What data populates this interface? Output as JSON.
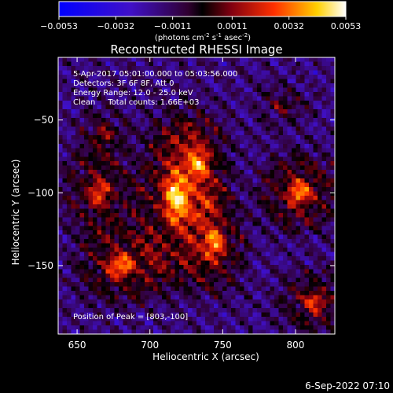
{
  "chart_data": {
    "type": "heatmap",
    "title": "Reconstructed RHESSI Image",
    "colorbar": {
      "ticks": [
        "-0.0053",
        "-0.0032",
        "-0.0011",
        "0.0011",
        "0.0032",
        "0.0053"
      ],
      "range": [
        -0.0053,
        0.0053
      ],
      "units_prefix": "(photons cm",
      "units_sup1": "-2",
      "units_mid": " s",
      "units_sup2": "-1",
      "units_end": " asec",
      "units_sup3": "-2",
      "units_close": ")",
      "colormap": "blue-purple-red-yellow-white"
    },
    "xlabel": "Heliocentric X (arcsec)",
    "ylabel": "Heliocentric Y (arcsec)",
    "xlim": [
      637,
      827
    ],
    "ylim": [
      -197,
      -7
    ],
    "xticks": [
      650,
      700,
      750,
      800
    ],
    "yticks": [
      -50,
      -100,
      -150
    ],
    "xtick_labels": [
      "650",
      "700",
      "750",
      "800"
    ],
    "ytick_labels": [
      "−50",
      "−100",
      "−150"
    ],
    "info_lines": [
      "5-Apr-2017 05:01:00.000 to 05:03:56.000",
      "Detectors: 3F 6F 8F, Att 0",
      "Energy Range: 12.0 - 25.0 keV",
      "Clean     Total counts: 1.66E+03"
    ],
    "peak_label": "Position of Peak = [803,-100]",
    "peak": [
      803,
      -100
    ],
    "sources": [
      {
        "x": 718,
        "y": -105,
        "sx": 14,
        "sy": 30,
        "amp": 1.0
      },
      {
        "x": 733,
        "y": -80,
        "sx": 12,
        "sy": 18,
        "amp": 0.7
      },
      {
        "x": 745,
        "y": -135,
        "sx": 11,
        "sy": 18,
        "amp": 0.85
      },
      {
        "x": 803,
        "y": -100,
        "sx": 14,
        "sy": 14,
        "amp": 0.95
      },
      {
        "x": 665,
        "y": -100,
        "sx": 13,
        "sy": 16,
        "amp": 0.75
      },
      {
        "x": 680,
        "y": -150,
        "sx": 16,
        "sy": 14,
        "amp": 0.9
      },
      {
        "x": 813,
        "y": -175,
        "sx": 13,
        "sy": 12,
        "amp": 0.7
      },
      {
        "x": 668,
        "y": -60,
        "sx": 10,
        "sy": 10,
        "amp": 0.5
      },
      {
        "x": 790,
        "y": -40,
        "sx": 10,
        "sy": 8,
        "amp": 0.4
      }
    ]
  },
  "footer": {
    "date": "6-Sep-2022 07:10"
  }
}
